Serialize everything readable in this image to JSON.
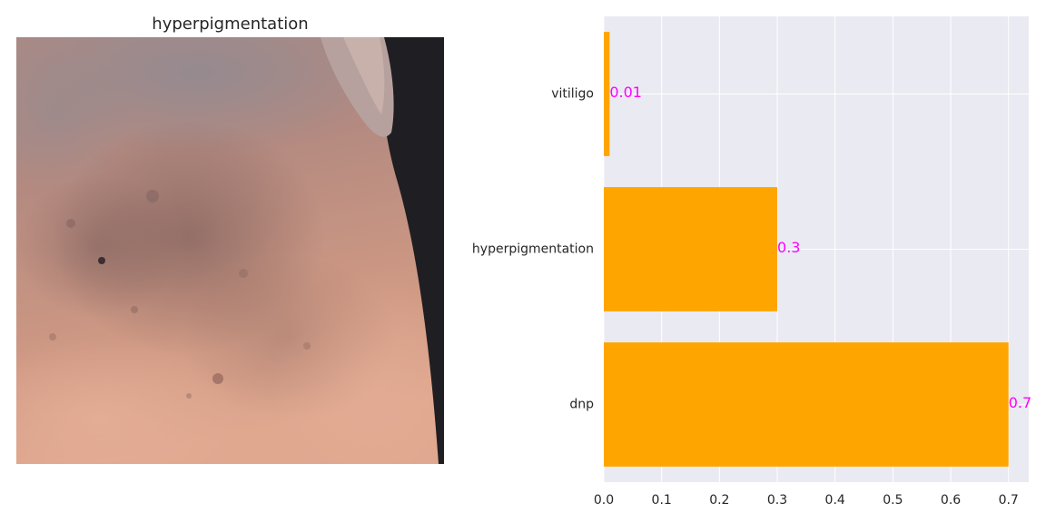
{
  "image_panel": {
    "title": "hyperpigmentation"
  },
  "chart_data": {
    "type": "bar",
    "orientation": "horizontal",
    "categories": [
      "dnp",
      "hyperpigmentation",
      "vitiligo"
    ],
    "values": [
      0.7,
      0.3,
      0.01
    ],
    "value_labels": [
      "0.7",
      "0.3",
      "0.01"
    ],
    "xlim": [
      0,
      0.735
    ],
    "xticks": [
      0.0,
      0.1,
      0.2,
      0.3,
      0.4,
      0.5,
      0.6,
      0.7
    ],
    "xtick_labels": [
      "0.0",
      "0.1",
      "0.2",
      "0.3",
      "0.4",
      "0.5",
      "0.6",
      "0.7"
    ],
    "title": "",
    "xlabel": "",
    "ylabel": "",
    "grid": true,
    "colors": {
      "bar": "#ffa500",
      "value_label": "#ff00ff",
      "background": "#eaeaf2",
      "grid": "#ffffff",
      "tick_text": "#262626"
    }
  }
}
